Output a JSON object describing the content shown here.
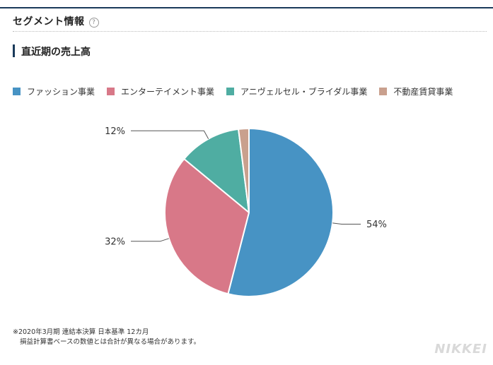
{
  "section": {
    "title": "セグメント情報",
    "help_icon": "?"
  },
  "subsection": {
    "title": "直近期の売上高"
  },
  "colors": {
    "accent": "#1a3a5a"
  },
  "chart_data": {
    "type": "pie",
    "categories": [
      "ファッション事業",
      "エンターテイメント事業",
      "アニヴェルセル・ブライダル事業",
      "不動産賃貸事業"
    ],
    "values": [
      54,
      32,
      12,
      2
    ],
    "colors": [
      "#4793c4",
      "#d87888",
      "#4fada2",
      "#c9a08e"
    ],
    "data_labels": [
      "54%",
      "32%",
      "12%",
      ""
    ],
    "legend_position": "top"
  },
  "footnote": {
    "line1": "※2020年3月期 連結本決算 日本基準 12カ月",
    "line2": "損益計算書ベースの数値とは合計が異なる場合があります。"
  },
  "logo_text": "NIKKEI"
}
